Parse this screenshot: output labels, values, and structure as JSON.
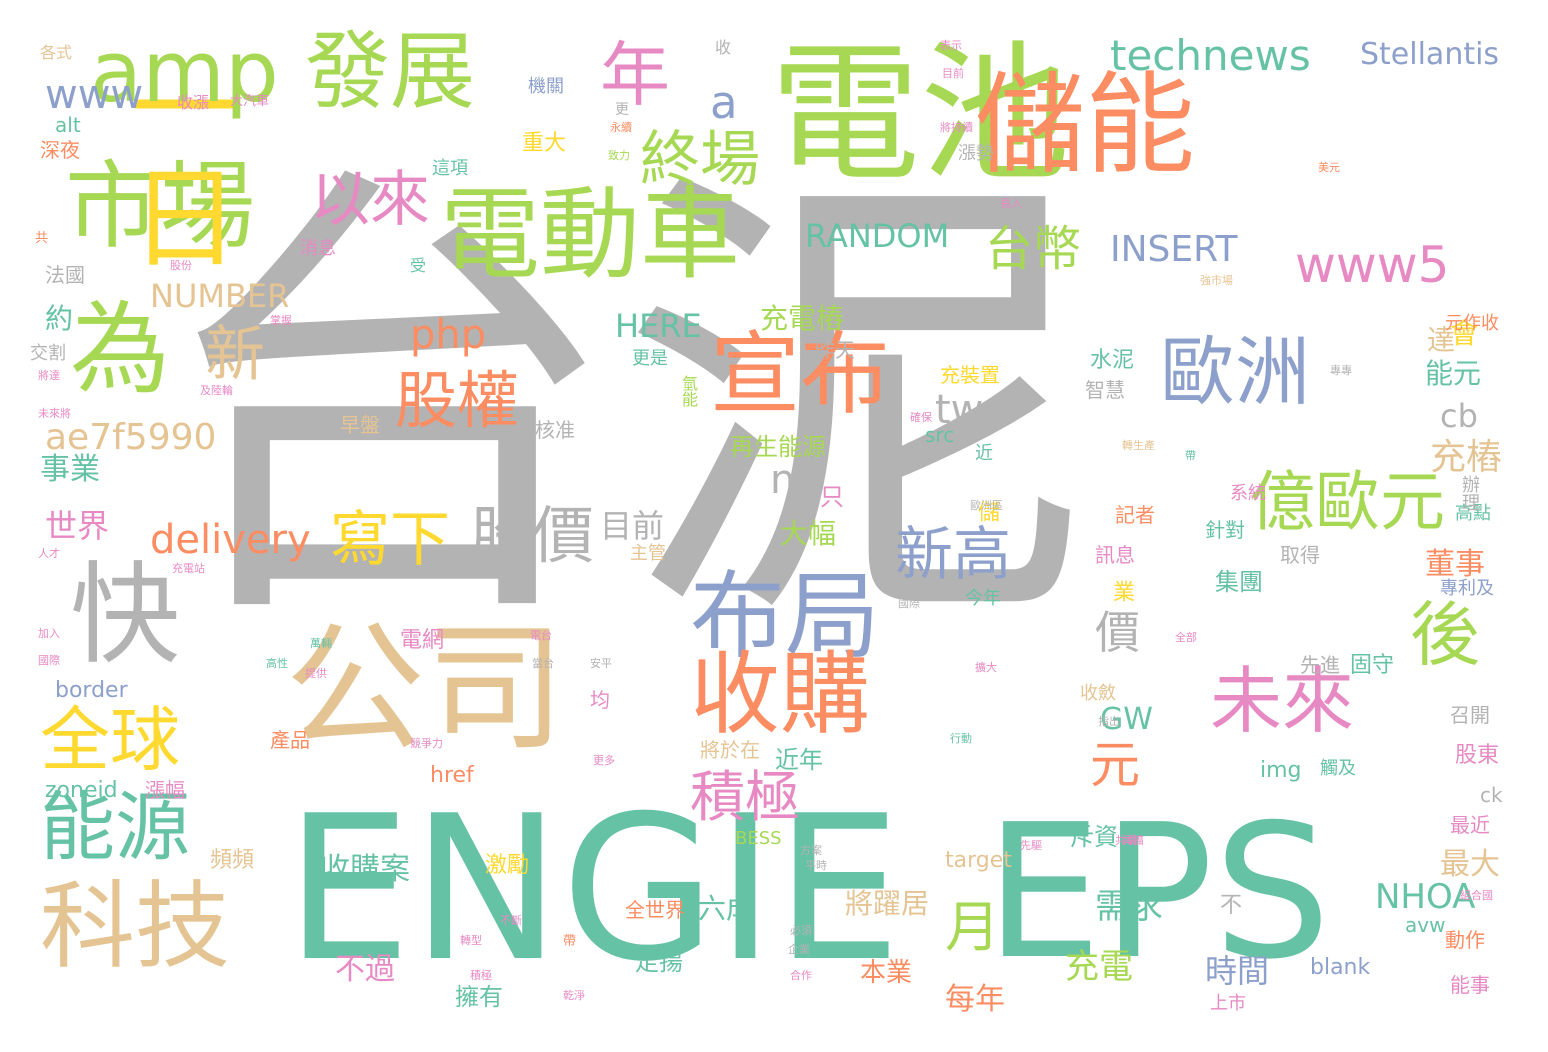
{
  "palette": {
    "gray": "#b3b3b3",
    "green": "#a6d854",
    "teal": "#66c2a5",
    "orange": "#fc8d62",
    "blue": "#8da0cb",
    "pink": "#e78ac3",
    "yellow": "#ffd92f",
    "tan": "#e5c494"
  },
  "words": [
    {
      "t": "台泥",
      "c": "gray"
    },
    {
      "t": "電池",
      "c": "green"
    },
    {
      "t": "ENGIE",
      "c": "teal"
    },
    {
      "t": "EPS",
      "c": "teal"
    },
    {
      "t": "電動車",
      "c": "green"
    },
    {
      "t": "儲能",
      "c": "orange"
    },
    {
      "t": "公司",
      "c": "tan"
    },
    {
      "t": "市場",
      "c": "green"
    },
    {
      "t": "一日",
      "c": "yellow"
    },
    {
      "t": "amp",
      "c": "green"
    },
    {
      "t": "發展",
      "c": "green"
    },
    {
      "t": "布局",
      "c": "blue"
    },
    {
      "t": "宣布",
      "c": "orange"
    },
    {
      "t": "收購",
      "c": "orange"
    },
    {
      "t": "為",
      "c": "green"
    },
    {
      "t": "快",
      "c": "gray"
    },
    {
      "t": "科技",
      "c": "tan"
    },
    {
      "t": "能源",
      "c": "teal"
    },
    {
      "t": "全球",
      "c": "yellow"
    },
    {
      "t": "年",
      "c": "pink"
    },
    {
      "t": "終場",
      "c": "green"
    },
    {
      "t": "以來",
      "c": "pink"
    },
    {
      "t": "歐洲",
      "c": "blue"
    },
    {
      "t": "億歐元",
      "c": "green"
    },
    {
      "t": "未來",
      "c": "pink"
    },
    {
      "t": "後",
      "c": "green"
    },
    {
      "t": "股權",
      "c": "orange"
    },
    {
      "t": "股價",
      "c": "gray"
    },
    {
      "t": "寫下",
      "c": "yellow"
    },
    {
      "t": "新高",
      "c": "blue"
    },
    {
      "t": "台幣",
      "c": "green"
    },
    {
      "t": "technews",
      "c": "teal"
    },
    {
      "t": "Stellantis",
      "c": "blue"
    },
    {
      "t": "www5",
      "c": "pink"
    },
    {
      "t": "www",
      "c": "blue"
    },
    {
      "t": "a",
      "c": "blue"
    },
    {
      "t": "RANDOM",
      "c": "teal"
    },
    {
      "t": "INSERT",
      "c": "blue"
    },
    {
      "t": "NUMBER",
      "c": "tan"
    },
    {
      "t": "HERE",
      "c": "teal"
    },
    {
      "t": "php",
      "c": "orange"
    },
    {
      "t": "delivery",
      "c": "orange"
    },
    {
      "t": "ae7f5990",
      "c": "tan"
    },
    {
      "t": "tw",
      "c": "gray"
    },
    {
      "t": "n",
      "c": "gray"
    },
    {
      "t": "新",
      "c": "tan"
    },
    {
      "t": "月",
      "c": "green"
    },
    {
      "t": "積極",
      "c": "pink"
    },
    {
      "t": "元",
      "c": "orange"
    },
    {
      "t": "價",
      "c": "gray"
    },
    {
      "t": "cb",
      "c": "gray"
    },
    {
      "t": "充樁",
      "c": "tan"
    },
    {
      "t": "NHOA",
      "c": "teal"
    },
    {
      "t": "充電樁",
      "c": "green"
    },
    {
      "t": "目前",
      "c": "gray"
    },
    {
      "t": "世界",
      "c": "pink"
    },
    {
      "t": "事業",
      "c": "teal"
    },
    {
      "t": "約",
      "c": "teal"
    },
    {
      "t": "能元",
      "c": "teal"
    },
    {
      "t": "董事",
      "c": "orange"
    },
    {
      "t": "會",
      "c": "yellow"
    },
    {
      "t": "達",
      "c": "tan"
    },
    {
      "t": "GW",
      "c": "teal"
    },
    {
      "t": "收購案",
      "c": "teal"
    },
    {
      "t": "不過",
      "c": "pink"
    },
    {
      "t": "需求",
      "c": "teal"
    },
    {
      "t": "充電",
      "c": "green"
    },
    {
      "t": "時間",
      "c": "blue"
    },
    {
      "t": "每年",
      "c": "orange"
    },
    {
      "t": "最大",
      "c": "tan"
    },
    {
      "t": "border",
      "c": "blue"
    },
    {
      "t": "zoneid",
      "c": "teal"
    },
    {
      "t": "href",
      "c": "orange"
    },
    {
      "t": "img",
      "c": "teal"
    },
    {
      "t": "target",
      "c": "tan"
    },
    {
      "t": "BESS",
      "c": "green"
    },
    {
      "t": "blank",
      "c": "blue"
    },
    {
      "t": "avw",
      "c": "teal"
    },
    {
      "t": "src",
      "c": "teal"
    },
    {
      "t": "alt",
      "c": "teal"
    },
    {
      "t": "ck",
      "c": "gray"
    },
    {
      "t": "水泥",
      "c": "teal"
    },
    {
      "t": "智慧",
      "c": "gray"
    },
    {
      "t": "再生能源",
      "c": "green"
    },
    {
      "t": "早盤",
      "c": "tan"
    },
    {
      "t": "核准",
      "c": "gray"
    },
    {
      "t": "大幅",
      "c": "green"
    },
    {
      "t": "只",
      "c": "pink"
    },
    {
      "t": "近年",
      "c": "teal"
    },
    {
      "t": "將於在",
      "c": "tan"
    },
    {
      "t": "斥資",
      "c": "teal"
    },
    {
      "t": "收斂",
      "c": "tan"
    },
    {
      "t": "六成",
      "c": "teal"
    },
    {
      "t": "將躍居",
      "c": "tan"
    },
    {
      "t": "本業",
      "c": "orange"
    },
    {
      "t": "擁有",
      "c": "teal"
    },
    {
      "t": "走揚",
      "c": "teal"
    },
    {
      "t": "全世界",
      "c": "orange"
    },
    {
      "t": "激勵",
      "c": "yellow"
    },
    {
      "t": "電網",
      "c": "pink"
    },
    {
      "t": "產品",
      "c": "orange"
    },
    {
      "t": "均",
      "c": "pink"
    },
    {
      "t": "集團",
      "c": "teal"
    },
    {
      "t": "先進",
      "c": "gray"
    },
    {
      "t": "固守",
      "c": "teal"
    },
    {
      "t": "股東",
      "c": "pink"
    },
    {
      "t": "最近",
      "c": "pink"
    },
    {
      "t": "動作",
      "c": "orange"
    },
    {
      "t": "能事",
      "c": "pink"
    },
    {
      "t": "上市",
      "c": "pink"
    },
    {
      "t": "系統",
      "c": "pink"
    },
    {
      "t": "記者",
      "c": "orange"
    },
    {
      "t": "訊息",
      "c": "pink"
    },
    {
      "t": "針對",
      "c": "teal"
    },
    {
      "t": "取得",
      "c": "gray"
    },
    {
      "t": "高點",
      "c": "teal"
    },
    {
      "t": "辦理",
      "c": "gray"
    },
    {
      "t": "召開",
      "c": "gray"
    },
    {
      "t": "觸及",
      "c": "teal"
    },
    {
      "t": "頻頻",
      "c": "tan"
    },
    {
      "t": "漲幅",
      "c": "pink"
    },
    {
      "t": "主管",
      "c": "tan"
    },
    {
      "t": "昨天",
      "c": "gray"
    },
    {
      "t": "充裝置",
      "c": "yellow"
    },
    {
      "t": "漲勢",
      "c": "gray"
    },
    {
      "t": "這項",
      "c": "teal"
    },
    {
      "t": "消息",
      "c": "pink"
    },
    {
      "t": "法國",
      "c": "gray"
    },
    {
      "t": "交割",
      "c": "gray"
    },
    {
      "t": "深夜",
      "c": "orange"
    },
    {
      "t": "各式",
      "c": "tan"
    },
    {
      "t": "收漲",
      "c": "pink"
    },
    {
      "t": "大汽車",
      "c": "pink"
    },
    {
      "t": "機關",
      "c": "blue"
    },
    {
      "t": "重大",
      "c": "yellow"
    },
    {
      "t": "收",
      "c": "gray"
    },
    {
      "t": "更是",
      "c": "teal"
    },
    {
      "t": "氫能",
      "c": "green"
    },
    {
      "t": "受",
      "c": "teal"
    },
    {
      "t": "不",
      "c": "gray"
    },
    {
      "t": "業",
      "c": "yellow"
    },
    {
      "t": "儲",
      "c": "yellow"
    },
    {
      "t": "近",
      "c": "teal"
    },
    {
      "t": "今年",
      "c": "teal"
    },
    {
      "t": "專利及",
      "c": "blue"
    },
    {
      "t": "元作收",
      "c": "orange"
    },
    {
      "t": "表示",
      "c": "pink"
    },
    {
      "t": "目前",
      "c": "pink"
    },
    {
      "t": "更",
      "c": "gray"
    },
    {
      "t": "永續",
      "c": "orange"
    },
    {
      "t": "致力",
      "c": "green"
    },
    {
      "t": "將持續",
      "c": "pink"
    },
    {
      "t": "美元",
      "c": "orange"
    },
    {
      "t": "長入",
      "c": "pink"
    },
    {
      "t": "股份",
      "c": "pink"
    },
    {
      "t": "掌握",
      "c": "pink"
    },
    {
      "t": "將達",
      "c": "pink"
    },
    {
      "t": "未來將",
      "c": "pink"
    },
    {
      "t": "共",
      "c": "orange"
    },
    {
      "t": "人才",
      "c": "pink"
    },
    {
      "t": "加入",
      "c": "pink"
    },
    {
      "t": "國際",
      "c": "pink"
    },
    {
      "t": "方案",
      "c": "gray"
    },
    {
      "t": "必須",
      "c": "gray"
    },
    {
      "t": "企業",
      "c": "gray"
    },
    {
      "t": "合作",
      "c": "pink"
    },
    {
      "t": "乾淨",
      "c": "pink"
    },
    {
      "t": "帶",
      "c": "orange"
    },
    {
      "t": "不斷",
      "c": "pink"
    },
    {
      "t": "積極",
      "c": "pink"
    },
    {
      "t": "歐洲區",
      "c": "gray"
    },
    {
      "t": "國際",
      "c": "gray"
    },
    {
      "t": "全部",
      "c": "pink"
    },
    {
      "t": "指出",
      "c": "gray"
    },
    {
      "t": "安平",
      "c": "gray"
    },
    {
      "t": "行動",
      "c": "teal"
    },
    {
      "t": "萬輛",
      "c": "teal"
    },
    {
      "t": "高性",
      "c": "teal"
    },
    {
      "t": "提供",
      "c": "pink"
    },
    {
      "t": "競爭力",
      "c": "pink"
    },
    {
      "t": "電台",
      "c": "pink"
    },
    {
      "t": "充電站",
      "c": "pink"
    },
    {
      "t": "更多",
      "c": "pink"
    },
    {
      "t": "轉型",
      "c": "pink"
    },
    {
      "t": "共構",
      "c": "pink"
    },
    {
      "t": "組合國",
      "c": "pink"
    },
    {
      "t": "轉生產",
      "c": "tan"
    },
    {
      "t": "確保",
      "c": "pink"
    },
    {
      "t": "擴大",
      "c": "pink"
    },
    {
      "t": "專專",
      "c": "gray"
    },
    {
      "t": "強市場",
      "c": "tan"
    },
    {
      "t": "及陸輪",
      "c": "pink"
    },
    {
      "t": "先驅",
      "c": "pink"
    },
    {
      "t": "平時",
      "c": "gray"
    },
    {
      "t": "當台",
      "c": "gray"
    },
    {
      "t": "具備",
      "c": "pink"
    },
    {
      "t": "帶",
      "c": "teal"
    }
  ]
}
